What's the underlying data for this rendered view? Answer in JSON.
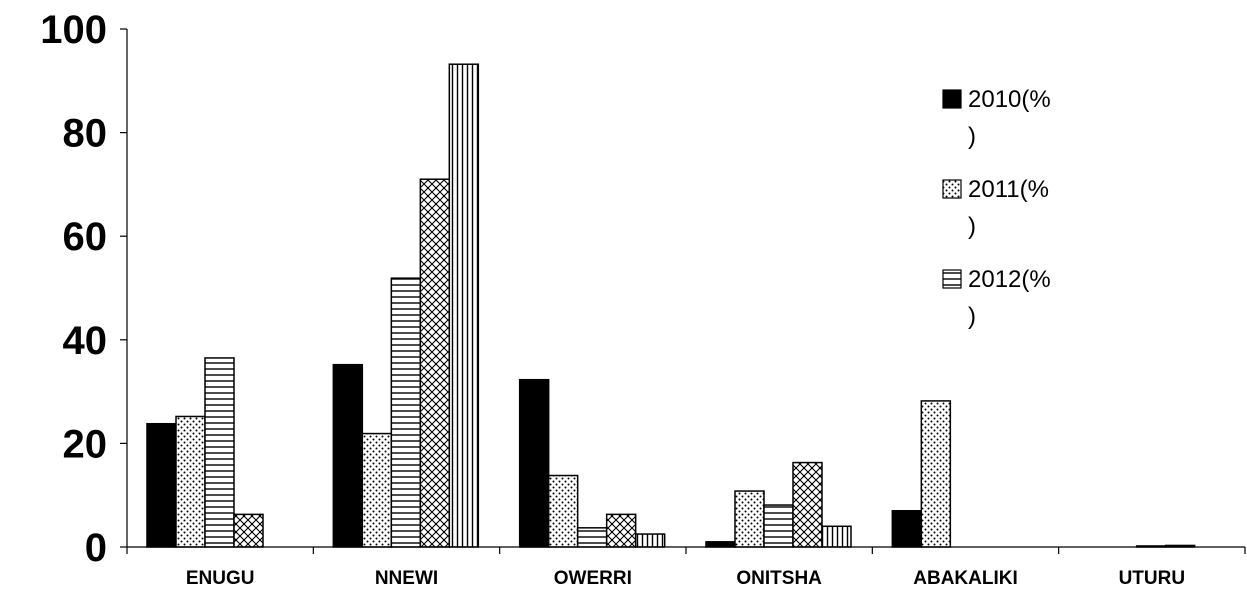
{
  "chart_data": {
    "type": "bar",
    "categories": [
      "ENUGU",
      "NNEWI",
      "OWERRI",
      "ONITSHA",
      "ABAKALIKI",
      "UTURU"
    ],
    "series": [
      {
        "name": "2010(%)",
        "values": [
          23.8,
          35.2,
          32.3,
          1.0,
          7.0,
          0
        ]
      },
      {
        "name": "2011(%)",
        "values": [
          25.2,
          21.9,
          13.8,
          10.8,
          28.2,
          0
        ]
      },
      {
        "name": "2012(%)",
        "values": [
          36.5,
          51.9,
          3.7,
          8.1,
          0,
          0.2
        ]
      },
      {
        "name": "",
        "values": [
          6.3,
          71.0,
          6.3,
          16.3,
          0,
          0.3
        ]
      },
      {
        "name": "",
        "values": [
          0,
          93.2,
          2.5,
          4.0,
          0,
          0
        ]
      }
    ],
    "ylim": [
      0,
      100
    ],
    "yticks": [
      0,
      20,
      40,
      60,
      80,
      100
    ],
    "xlabel": "",
    "ylabel": "",
    "title": "",
    "legend": {
      "placement": "top-right",
      "entries": [
        {
          "line1": "2010(%",
          "line2": ")",
          "pattern": "solid"
        },
        {
          "line1": "2011(%",
          "line2": ")",
          "pattern": "dots"
        },
        {
          "line1": "2012(%",
          "line2": ")",
          "pattern": "hlines"
        }
      ]
    },
    "grid": false,
    "colors": {
      "fill": "#000000",
      "background": "#ffffff"
    }
  }
}
